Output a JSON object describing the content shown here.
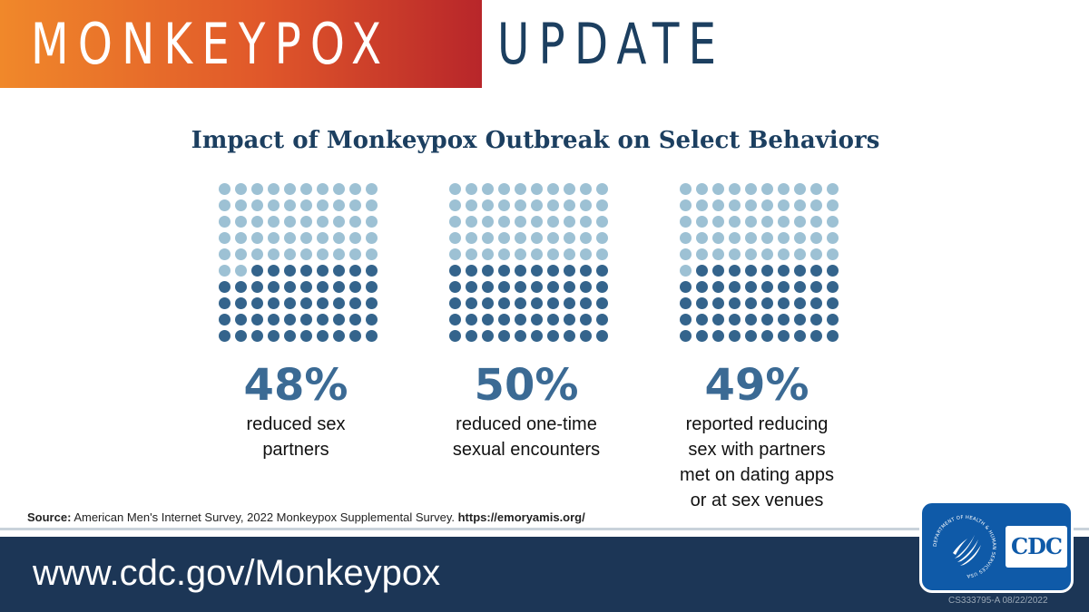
{
  "banner": {
    "word1": "MONKEYPOX",
    "word2": "UPDATE"
  },
  "colors": {
    "filled_dot": "#34648c",
    "empty_dot": "#9dc1d4",
    "navy": "#1c3656",
    "accent": "#3b6a94"
  },
  "chart_data": {
    "type": "waffle",
    "title": "Impact of Monkeypox Outbreak on Select Behaviors",
    "grid": [
      10,
      10
    ],
    "panels": [
      {
        "value": 48,
        "value_label": "48%",
        "label": "reduced sex\npartners"
      },
      {
        "value": 50,
        "value_label": "50%",
        "label": "reduced one-time\nsexual encounters"
      },
      {
        "value": 49,
        "value_label": "49%",
        "label": "reported reducing\nsex with partners\nmet on dating apps\nor at sex venues"
      }
    ]
  },
  "source": {
    "label": "Source:",
    "text": "American Men's Internet Survey, 2022 Monkeypox Supplemental Survey.",
    "link": "https://emoryamis.org/"
  },
  "footer": {
    "url": "www.cdc.gov/Monkeypox"
  },
  "logo": {
    "text": "CDC",
    "seal_text": "DEPARTMENT OF HEALTH & HUMAN SERVICES USA"
  },
  "code": "CS333795-A  08/22/2022"
}
